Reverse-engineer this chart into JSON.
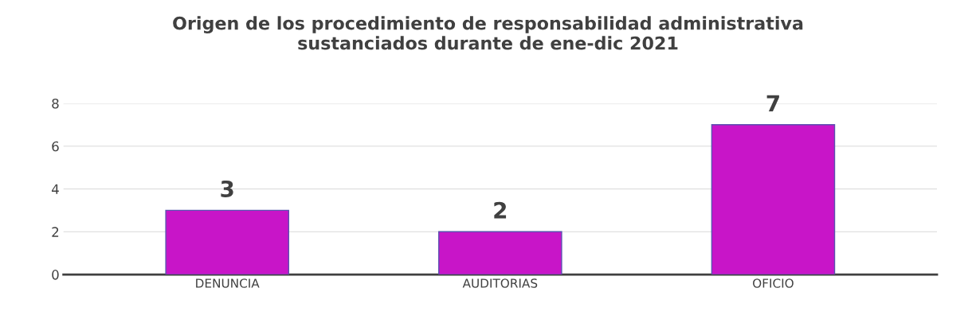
{
  "chart_data": {
    "type": "bar",
    "title": "Origen de los procedimiento de responsabilidad administrativa\nsustanciados durante de ene-dic 2021",
    "categories": [
      "DENUNCIA",
      "AUDITORIAS",
      "OFICIO"
    ],
    "values": [
      3,
      2,
      7
    ],
    "color": "#c815c8",
    "ylim": [
      0,
      8
    ],
    "yticks": [
      0,
      2,
      4,
      6,
      8
    ],
    "grid": "y",
    "data_labels": true
  }
}
